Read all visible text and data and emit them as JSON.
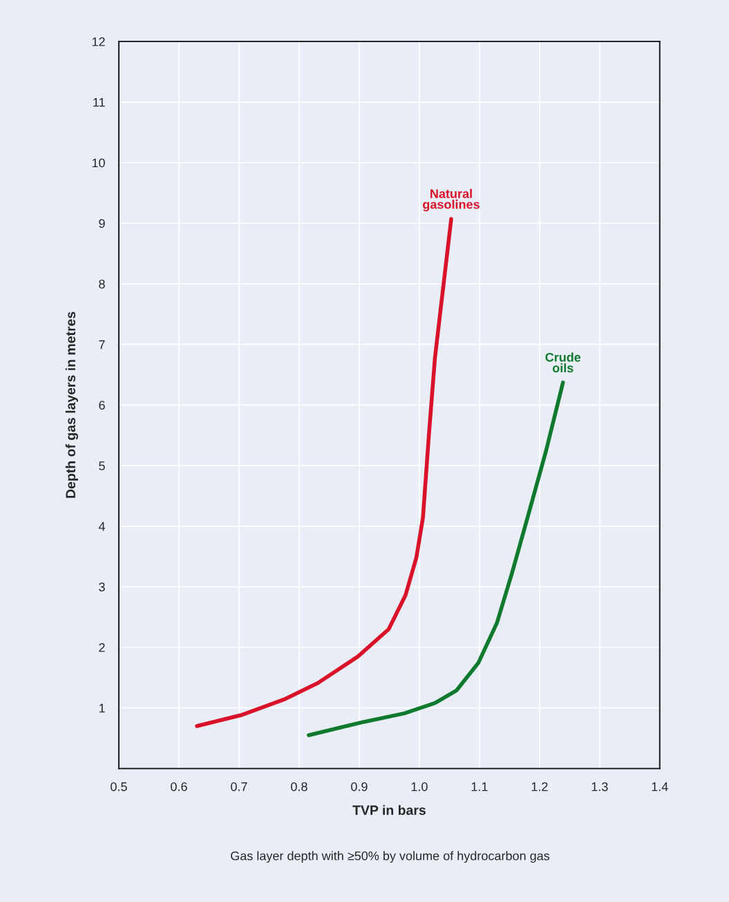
{
  "chart_data": {
    "type": "line",
    "xlabel": "TVP in bars",
    "ylabel": "Depth of gas layers in metres",
    "series": [
      {
        "name": "Natural\ngasolines",
        "color": "#d9122a",
        "x": [
          0.63,
          0.703,
          0.775,
          0.831,
          0.898,
          0.949,
          0.977,
          0.995,
          1.006,
          1.016,
          1.026,
          1.053
        ],
        "values": [
          0.7,
          0.88,
          1.14,
          1.41,
          1.85,
          2.3,
          2.86,
          3.48,
          4.14,
          5.52,
          6.78,
          9.07
        ]
      },
      {
        "name": "Crude\noils",
        "color": "#0f7a2e",
        "x": [
          0.816,
          0.908,
          0.975,
          1.026,
          1.062,
          1.098,
          1.129,
          1.154,
          1.18,
          1.211,
          1.239
        ],
        "values": [
          0.55,
          0.77,
          0.91,
          1.08,
          1.29,
          1.74,
          2.4,
          3.22,
          4.14,
          5.25,
          6.37
        ]
      }
    ],
    "xlim": [
      0.5,
      1.4
    ],
    "xticks": [
      0.5,
      0.6,
      0.7,
      0.8,
      0.9,
      {
        "value": 1.0,
        "label": "1.0"
      },
      1.1,
      1.2,
      1.3,
      1.4
    ],
    "ylim": [
      0,
      12
    ],
    "yticks": [
      1,
      2,
      3,
      4,
      5,
      6,
      7,
      8,
      9,
      10,
      11,
      12
    ],
    "grid": true,
    "marker": "none",
    "line_style": "solid",
    "legend": false,
    "annotations": [
      "Gas layer depth with ≥50% by volume of hydrocarbon gas"
    ]
  }
}
